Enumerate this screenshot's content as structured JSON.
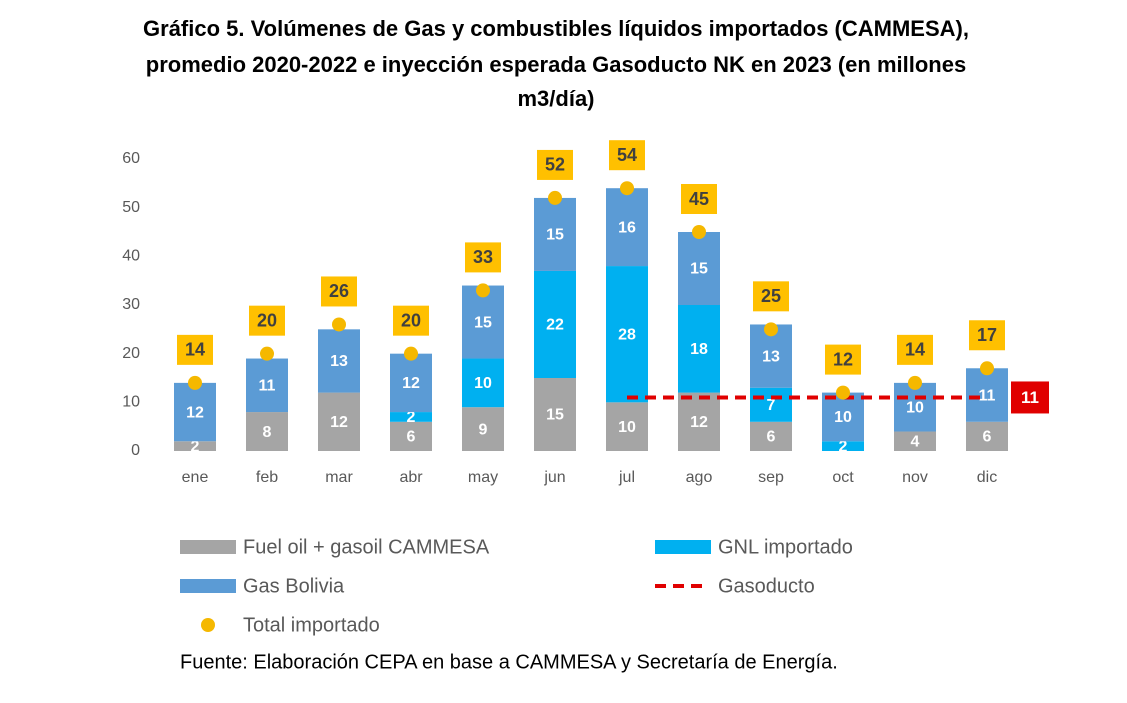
{
  "chart_data": {
    "type": "bar",
    "title_lines": [
      "Gráfico 5. Volúmenes de Gas y combustibles líquidos importados (CAMMESA),",
      "promedio 2020-2022 e inyección esperada Gasoducto NK en 2023 (en millones",
      "m3/día)"
    ],
    "categories": [
      "ene",
      "feb",
      "mar",
      "abr",
      "may",
      "jun",
      "jul",
      "ago",
      "sep",
      "oct",
      "nov",
      "dic"
    ],
    "series": [
      {
        "name": "Fuel oil + gasoil CAMMESA",
        "color": "#a5a5a5",
        "values": [
          2,
          8,
          12,
          6,
          9,
          15,
          10,
          12,
          6,
          null,
          4,
          6
        ]
      },
      {
        "name": "GNL importado",
        "color": "#00b0f0",
        "values": [
          null,
          null,
          null,
          2,
          10,
          22,
          28,
          18,
          7,
          2,
          null,
          null
        ]
      },
      {
        "name": "Gas Bolivia",
        "color": "#5b9bd5",
        "values": [
          12,
          11,
          13,
          12,
          15,
          15,
          16,
          15,
          13,
          10,
          10,
          11
        ]
      },
      {
        "name": "Gasoducto",
        "color": "#e00000",
        "type": "line",
        "values": [
          null,
          null,
          null,
          null,
          null,
          null,
          11,
          11,
          11,
          11,
          11,
          11
        ]
      },
      {
        "name": "Total importado",
        "color": "#f5b800",
        "type": "scatter",
        "values": [
          14,
          20,
          26,
          20,
          33,
          52,
          54,
          45,
          25,
          12,
          14,
          17
        ]
      }
    ],
    "ylim": [
      0,
      60
    ],
    "yticks": [
      0,
      10,
      20,
      30,
      40,
      50,
      60
    ],
    "grid": false,
    "source": "Fuente: Elaboración CEPA en base a CAMMESA y Secretaría de Energía."
  }
}
